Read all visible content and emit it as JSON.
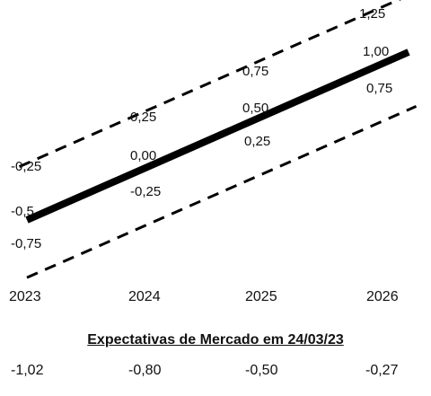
{
  "chart_data": {
    "type": "line",
    "x": [
      "2023",
      "2024",
      "2025",
      "2026"
    ],
    "series": [
      {
        "role": "upper-band",
        "style": "dashed",
        "values": [
          -0.25,
          0.25,
          0.75,
          1.25
        ],
        "labels": [
          "-0,25",
          "0,25",
          "0,75",
          "1,25"
        ]
      },
      {
        "role": "central",
        "style": "solid-thick",
        "values": [
          -0.5,
          0.0,
          0.5,
          1.0
        ],
        "labels": [
          "-0,5",
          "0,00",
          "0,50",
          "1,00"
        ]
      },
      {
        "role": "lower-band",
        "style": "dashed",
        "values": [
          -0.75,
          -0.25,
          0.25,
          0.75
        ],
        "labels": [
          "-0,75",
          "-0,25",
          "0,25",
          "0,75"
        ]
      }
    ],
    "subtitle": "Expectativas de Mercado em 24/03/23",
    "market_expectations": [
      "-1,02",
      "-0,80",
      "-0,50",
      "-0,27"
    ],
    "grid": false,
    "colors": {
      "line": "#000000",
      "text": "#111111"
    }
  }
}
